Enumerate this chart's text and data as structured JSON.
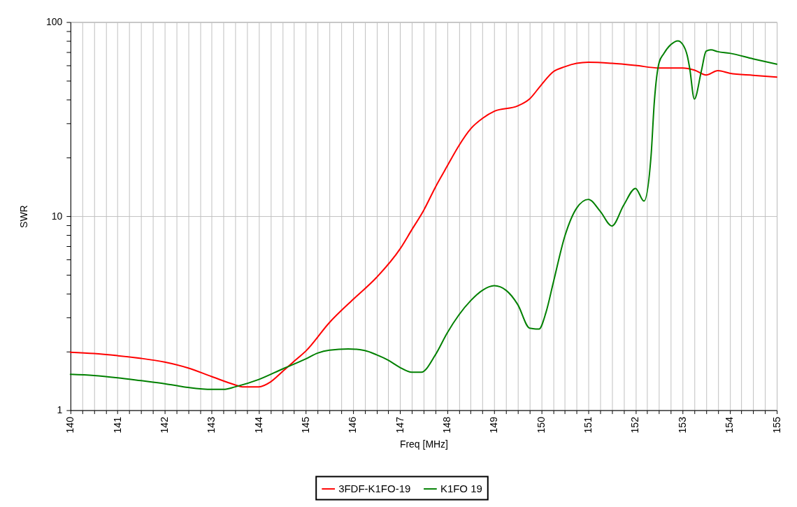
{
  "chart_data": {
    "type": "line",
    "xlabel": "Freq [MHz]",
    "ylabel": "SWR",
    "log": true,
    "grid": true,
    "legend": "bottom",
    "line_style": "solid",
    "xlim": [
      140,
      155
    ],
    "xticks": [
      140,
      {
        "value": 140.25,
        "label": null
      },
      {
        "value": 140.5,
        "label": null
      },
      {
        "value": 140.75,
        "label": null
      },
      141,
      {
        "value": 141.25,
        "label": null
      },
      {
        "value": 141.5,
        "label": null
      },
      {
        "value": 141.75,
        "label": null
      },
      142,
      {
        "value": 142.25,
        "label": null
      },
      {
        "value": 142.5,
        "label": null
      },
      {
        "value": 142.75,
        "label": null
      },
      143,
      {
        "value": 143.25,
        "label": null
      },
      {
        "value": 143.5,
        "label": null
      },
      {
        "value": 143.75,
        "label": null
      },
      144,
      {
        "value": 144.25,
        "label": null
      },
      {
        "value": 144.5,
        "label": null
      },
      {
        "value": 144.75,
        "label": null
      },
      145,
      {
        "value": 145.25,
        "label": null
      },
      {
        "value": 145.5,
        "label": null
      },
      {
        "value": 145.75,
        "label": null
      },
      146,
      {
        "value": 146.25,
        "label": null
      },
      {
        "value": 146.5,
        "label": null
      },
      {
        "value": 146.75,
        "label": null
      },
      147,
      {
        "value": 147.25,
        "label": null
      },
      {
        "value": 147.5,
        "label": null
      },
      {
        "value": 147.75,
        "label": null
      },
      148,
      {
        "value": 148.25,
        "label": null
      },
      {
        "value": 148.5,
        "label": null
      },
      {
        "value": 148.75,
        "label": null
      },
      149,
      {
        "value": 149.25,
        "label": null
      },
      {
        "value": 149.5,
        "label": null
      },
      {
        "value": 149.75,
        "label": null
      },
      150,
      {
        "value": 150.25,
        "label": null
      },
      {
        "value": 150.5,
        "label": null
      },
      {
        "value": 150.75,
        "label": null
      },
      151,
      {
        "value": 151.25,
        "label": null
      },
      {
        "value": 151.5,
        "label": null
      },
      {
        "value": 151.75,
        "label": null
      },
      152,
      {
        "value": 152.25,
        "label": null
      },
      {
        "value": 152.5,
        "label": null
      },
      {
        "value": 152.75,
        "label": null
      },
      153,
      {
        "value": 153.25,
        "label": null
      },
      {
        "value": 153.5,
        "label": null
      },
      {
        "value": 153.75,
        "label": null
      },
      154,
      {
        "value": 154.25,
        "label": null
      },
      {
        "value": 154.5,
        "label": null
      },
      {
        "value": 154.75,
        "label": null
      },
      155
    ],
    "ylim": [
      1,
      100
    ],
    "yticks": [
      1,
      {
        "value": 2,
        "label": null
      },
      {
        "value": 3,
        "label": null
      },
      {
        "value": 4,
        "label": null
      },
      {
        "value": 5,
        "label": null
      },
      {
        "value": 6,
        "label": null
      },
      {
        "value": 7,
        "label": null
      },
      {
        "value": 8,
        "label": null
      },
      {
        "value": 9,
        "label": null
      },
      10,
      {
        "value": 20,
        "label": null
      },
      {
        "value": 30,
        "label": null
      },
      {
        "value": 40,
        "label": null
      },
      {
        "value": 50,
        "label": null
      },
      {
        "value": 60,
        "label": null
      },
      {
        "value": 70,
        "label": null
      },
      {
        "value": 80,
        "label": null
      },
      {
        "value": 90,
        "label": null
      },
      100
    ],
    "series": [
      {
        "name": "3FDF-K1FO-19",
        "color": "#ff0000",
        "x": [
          140,
          140.5,
          141,
          141.5,
          142,
          142.5,
          143,
          143.5,
          143.65,
          144,
          144.25,
          144.5,
          144.75,
          145,
          145.5,
          146,
          146.5,
          147,
          147.25,
          147.5,
          147.75,
          148,
          148.25,
          148.5,
          148.75,
          149,
          149.5,
          149.75,
          150,
          150.25,
          150.5,
          150.75,
          151,
          151.5,
          152,
          152.5,
          153,
          153.25,
          153.5,
          153.75,
          154,
          154.5,
          155
        ],
        "values": [
          1.99,
          1.96,
          1.91,
          1.85,
          1.77,
          1.65,
          1.49,
          1.35,
          1.32,
          1.32,
          1.4,
          1.58,
          1.79,
          2.02,
          2.83,
          3.72,
          4.83,
          6.78,
          8.52,
          10.7,
          14.1,
          18.1,
          23.1,
          28.2,
          31.9,
          34.7,
          37.0,
          40.2,
          47.5,
          55.4,
          58.9,
          61.3,
          62.1,
          61.3,
          59.8,
          58.0,
          58.0,
          56.6,
          53.4,
          56.2,
          54.5,
          53.2,
          52.1
        ]
      },
      {
        "name": "K1FO 19",
        "color": "#008000",
        "x": [
          140,
          140.5,
          141,
          141.5,
          142,
          142.5,
          143,
          143.25,
          143.5,
          144,
          144.5,
          145,
          145.25,
          145.5,
          145.9,
          146.25,
          146.5,
          146.75,
          147,
          147.25,
          147.45,
          147.75,
          148,
          148.25,
          148.5,
          148.75,
          149,
          149.25,
          149.5,
          149.75,
          149.95,
          150.1,
          150.25,
          150.5,
          150.75,
          151,
          151.25,
          151.5,
          151.75,
          152,
          152.18,
          152.33,
          152.4,
          152.5,
          152.6,
          152.75,
          152.9,
          153,
          153.1,
          153.15,
          153.25,
          153.4,
          153.5,
          153.6,
          153.75,
          154,
          154.5,
          155
        ],
        "values": [
          1.53,
          1.51,
          1.47,
          1.42,
          1.37,
          1.31,
          1.28,
          1.28,
          1.32,
          1.44,
          1.63,
          1.84,
          1.97,
          2.04,
          2.07,
          2.03,
          1.93,
          1.81,
          1.66,
          1.57,
          1.57,
          1.93,
          2.5,
          3.1,
          3.67,
          4.15,
          4.38,
          4.15,
          3.5,
          2.65,
          2.62,
          3.2,
          4.5,
          7.9,
          11.0,
          12.2,
          10.6,
          8.9,
          11.4,
          13.9,
          11.95,
          20.4,
          38.9,
          61.7,
          68.7,
          76.5,
          80.0,
          76.9,
          67.0,
          58.0,
          40.1,
          56.2,
          70.8,
          71.9,
          70.4,
          69.1,
          64.6,
          60.7
        ]
      }
    ]
  }
}
